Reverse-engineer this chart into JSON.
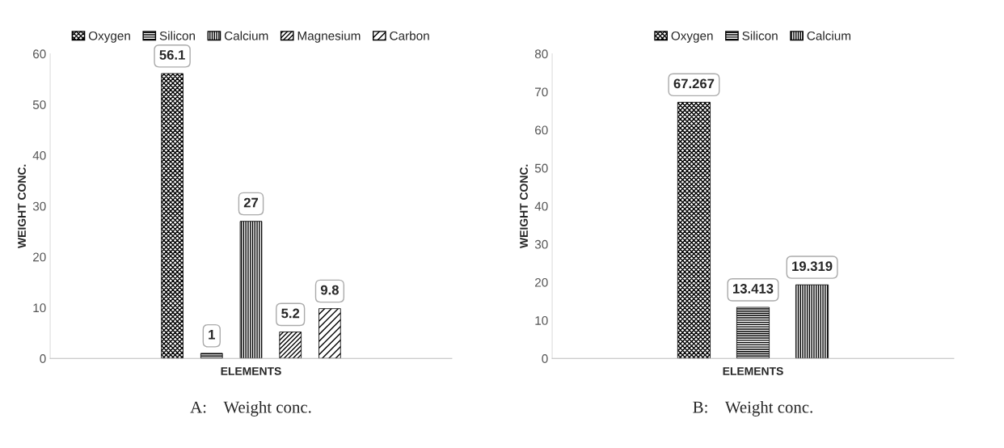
{
  "chart_data": [
    {
      "type": "bar",
      "categories": [
        null
      ],
      "xlabel": "ELEMENTS",
      "ylabel": "WEIGHT CONC.",
      "ylim": [
        0,
        60
      ],
      "yticks": [
        0,
        10,
        20,
        30,
        40,
        50,
        60
      ],
      "grid": false,
      "legend": "top",
      "data_labels": true,
      "annotations": [
        "A:    Weight conc."
      ],
      "series": [
        {
          "name": "Oxygen",
          "color": "#000000",
          "values": [
            56.1
          ]
        },
        {
          "name": "Silicon",
          "color": "#000000",
          "values": [
            1
          ]
        },
        {
          "name": "Calcium",
          "color": "#000000",
          "values": [
            27
          ]
        },
        {
          "name": "Magnesium",
          "color": "#000000",
          "values": [
            5.2
          ]
        },
        {
          "name": "Carbon",
          "color": "#000000",
          "values": [
            9.8
          ]
        }
      ]
    },
    {
      "type": "bar",
      "categories": [
        null
      ],
      "xlabel": "ELEMENTS",
      "ylabel": "WEIGHT CONC.",
      "ylim": [
        0,
        80
      ],
      "yticks": [
        0,
        10,
        20,
        30,
        40,
        50,
        60,
        70,
        80
      ],
      "grid": false,
      "legend": "top",
      "data_labels": true,
      "annotations": [
        "B:    Weight conc."
      ],
      "series": [
        {
          "name": "Oxygen",
          "color": "#000000",
          "values": [
            67.267
          ]
        },
        {
          "name": "Silicon",
          "color": "#000000",
          "values": [
            13.413
          ]
        },
        {
          "name": "Calcium",
          "color": "#000000",
          "values": [
            19.319
          ]
        }
      ]
    }
  ]
}
